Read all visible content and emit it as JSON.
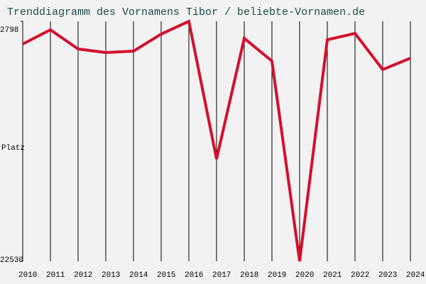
{
  "chart_data": {
    "type": "line",
    "title": "Trenddiagramm des Vornamens Tibor / beliebte-Vornamen.de",
    "y_label": "Platz",
    "categories": [
      "2010",
      "2011",
      "2012",
      "2013",
      "2014",
      "2015",
      "2016",
      "2017",
      "2018",
      "2019",
      "2020",
      "2021",
      "2022",
      "2023",
      "2024"
    ],
    "series": [
      {
        "name": "Tibor",
        "color": "#d4102c",
        "values": [
          4667,
          3499,
          5075,
          5367,
          5251,
          3849,
          2798,
          14124,
          4199,
          6068,
          22530,
          4316,
          3790,
          6768,
          5834
        ]
      }
    ],
    "ylim": [
      22530,
      2798
    ],
    "yticks": [
      2798,
      22530
    ],
    "grid": true
  }
}
